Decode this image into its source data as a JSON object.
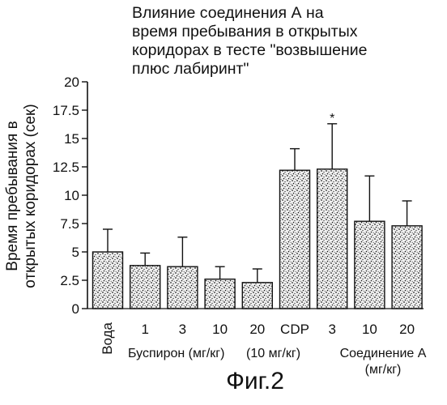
{
  "chart_data": {
    "type": "bar",
    "title_lines": [
      "Влияние соединения А на",
      "время пребывания в открытых",
      "коридорах в тесте \"возвышение",
      "плюс лабиринт\""
    ],
    "ylabel_lines": [
      "Время пребывания в",
      "открытых коридорах (сек)"
    ],
    "xlabel": "",
    "ylim": [
      0,
      20
    ],
    "y_ticks": [
      "0",
      "2.5",
      "5",
      "7.5",
      "10",
      "12.5",
      "15",
      "17.5",
      "20"
    ],
    "y_tick_values": [
      0,
      2.5,
      5,
      7.5,
      10,
      12.5,
      15,
      17.5,
      20
    ],
    "categories": [
      "Вода",
      "1",
      "3",
      "10",
      "20",
      "CDP",
      "3",
      "10",
      "20"
    ],
    "values": [
      5.0,
      3.8,
      3.7,
      2.6,
      2.3,
      12.2,
      12.3,
      7.7,
      7.3
    ],
    "errors": [
      2.0,
      1.1,
      2.6,
      1.1,
      1.2,
      1.9,
      4.0,
      4.0,
      2.2
    ],
    "group_labels": [
      {
        "text": "Буспирон (мг/кг)",
        "bars": [
          1,
          4
        ]
      },
      {
        "text": "(10 мг/кг)",
        "bars": [
          5,
          5
        ]
      },
      {
        "text_lines": [
          "Соединение А",
          "(мг/кг)"
        ],
        "bars": [
          6,
          8
        ]
      }
    ],
    "annotations": [
      {
        "bar": 6,
        "text": "*"
      }
    ],
    "grid": false,
    "legend": "none"
  },
  "figure_caption": "Фиг.2"
}
